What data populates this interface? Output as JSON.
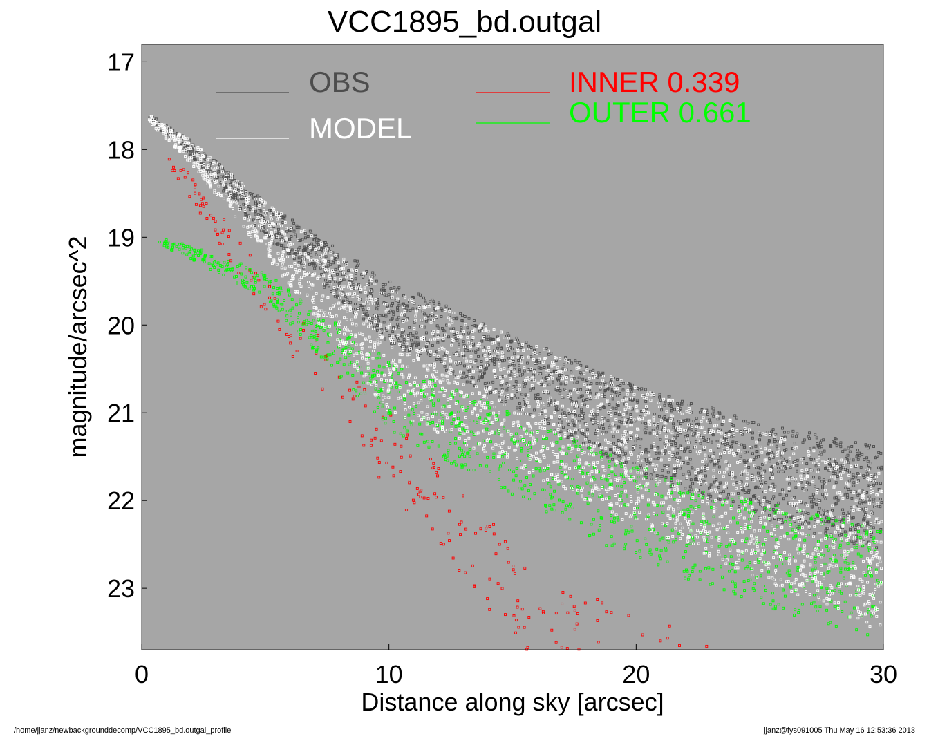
{
  "chart_data": {
    "type": "scatter",
    "title": "VCC1895_bd.outgal",
    "xlabel": "Distance along sky [arcsec]",
    "ylabel": "magnitude/arcsec^2",
    "xlim": [
      0,
      30
    ],
    "ylim": [
      23.7,
      16.8
    ],
    "y_inverted": true,
    "x_ticks": [
      0,
      10,
      20,
      30
    ],
    "y_ticks": [
      17,
      18,
      19,
      20,
      21,
      22,
      23
    ],
    "plot_background": "#a6a6a6",
    "grid": false,
    "legend_placement": "top",
    "series": [
      {
        "name": "OBS",
        "color": "#4d4d4d",
        "values_note": "",
        "y_at_x": [
          [
            0.3,
            17.6
          ],
          [
            2,
            17.9
          ],
          [
            5,
            18.6
          ],
          [
            10,
            19.5
          ],
          [
            15,
            20.1
          ],
          [
            20,
            20.7
          ],
          [
            25,
            21.1
          ],
          [
            30,
            21.4
          ]
        ],
        "spread": [
          [
            0,
            0.05
          ],
          [
            5,
            0.4
          ],
          [
            10,
            0.7
          ],
          [
            20,
            1.0
          ],
          [
            30,
            1.2
          ]
        ]
      },
      {
        "name": "MODEL",
        "color": "#ffffff",
        "y_at_x": [
          [
            0.3,
            17.6
          ],
          [
            2,
            17.9
          ],
          [
            5,
            18.6
          ],
          [
            10,
            19.6
          ],
          [
            15,
            20.1
          ],
          [
            20,
            20.7
          ],
          [
            25,
            21.2
          ],
          [
            30,
            21.7
          ]
        ],
        "spread": [
          [
            0,
            0.05
          ],
          [
            5,
            0.6
          ],
          [
            10,
            1.4
          ],
          [
            20,
            1.6
          ],
          [
            30,
            1.8
          ]
        ]
      },
      {
        "name": "INNER",
        "label": "INNER  0.339",
        "fraction": 0.339,
        "color": "#ff0000",
        "y_at_x": [
          [
            0.7,
            17.95
          ],
          [
            2,
            18.3
          ],
          [
            5,
            19.4
          ],
          [
            8,
            20.4
          ],
          [
            12,
            21.6
          ],
          [
            16,
            22.8
          ],
          [
            22,
            23.5
          ],
          [
            24,
            23.7
          ]
        ],
        "spread": [
          [
            0,
            0.1
          ],
          [
            10,
            0.9
          ],
          [
            20,
            1.2
          ]
        ]
      },
      {
        "name": "OUTER",
        "label": "OUTER  0.661",
        "fraction": 0.661,
        "color": "#00ff00",
        "y_at_x": [
          [
            0.7,
            19.0
          ],
          [
            2,
            19.1
          ],
          [
            5,
            19.4
          ],
          [
            10,
            20.4
          ],
          [
            15,
            21.0
          ],
          [
            20,
            21.6
          ],
          [
            25,
            22.0
          ],
          [
            30,
            22.3
          ]
        ],
        "spread": [
          [
            0,
            0.05
          ],
          [
            5,
            0.3
          ],
          [
            10,
            0.8
          ],
          [
            20,
            1.1
          ],
          [
            30,
            1.3
          ]
        ]
      }
    ]
  },
  "legend": {
    "obs": "OBS",
    "model": "MODEL",
    "inner": "INNER  0.339",
    "outer": "OUTER  0.661",
    "obs_color": "#4d4d4d",
    "model_color": "#ffffff",
    "inner_color": "#ff0000",
    "outer_color": "#00ff00"
  },
  "footer": {
    "path": "/home/jjanz/newbackgrounddecomp/VCC1895_bd.outgal_profile",
    "stamp": "jjanz@fys091005  Thu May 16 12:53:36 2013"
  }
}
